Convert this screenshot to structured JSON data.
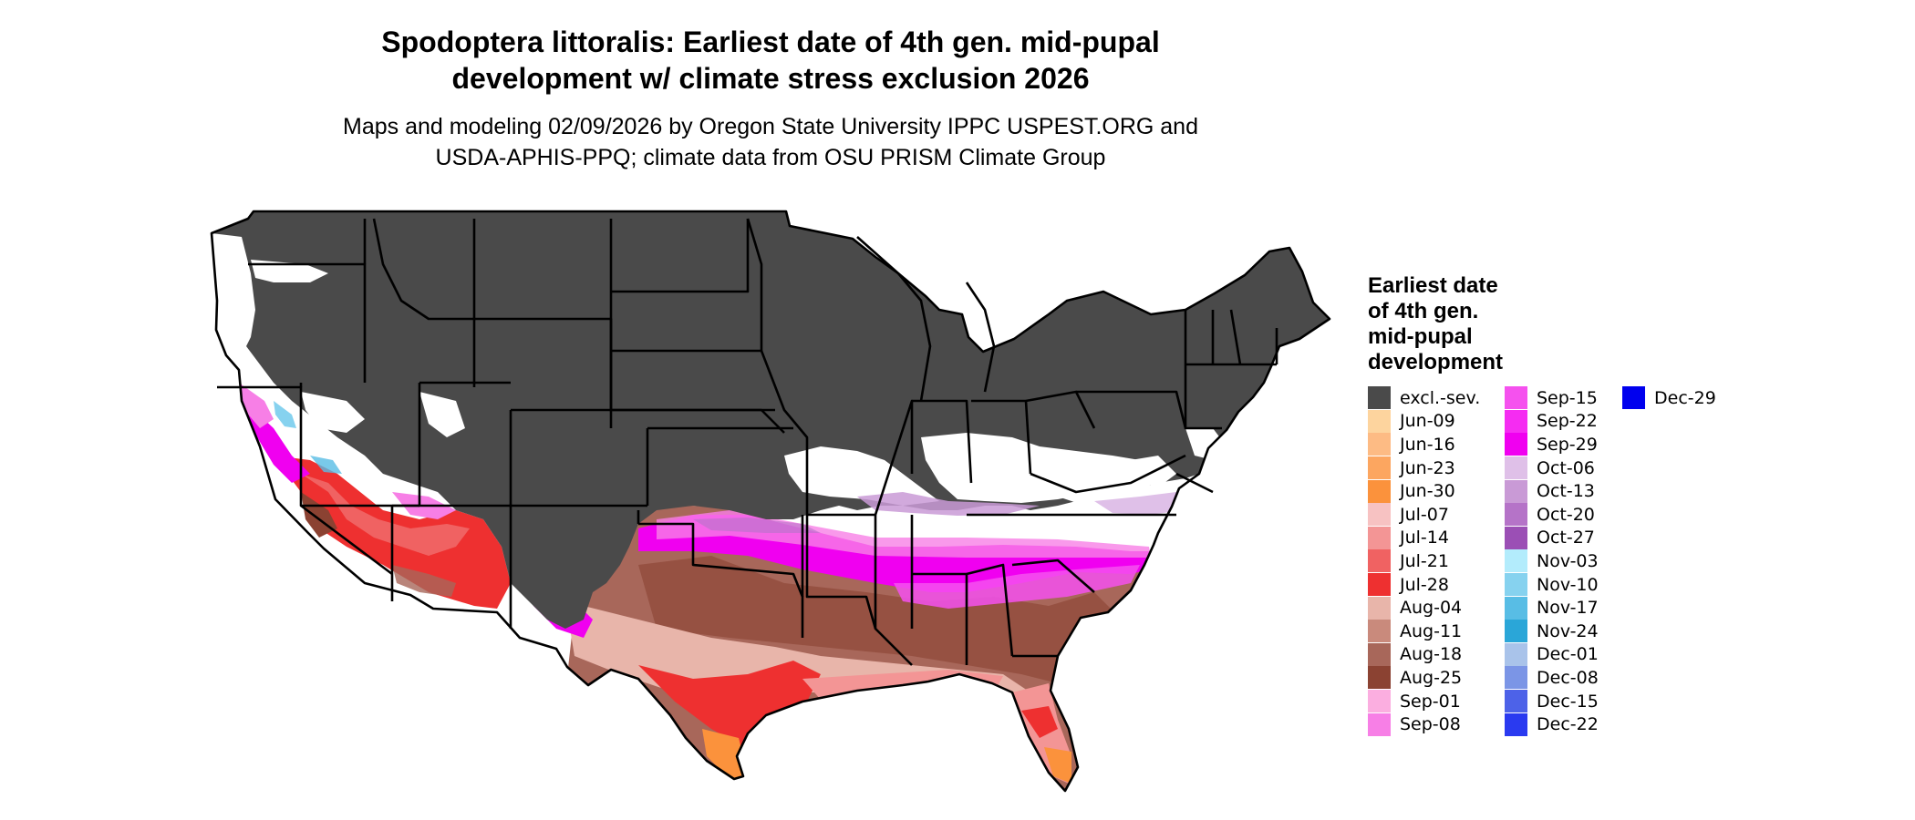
{
  "title_lines": [
    "Spodoptera littoralis: Earliest date of 4th gen. mid-pupal",
    "development w/ climate stress exclusion 2026"
  ],
  "subtitle_lines": [
    "Maps and modeling 02/09/2026 by Oregon State University IPPC USPEST.ORG and",
    "USDA-APHIS-PPQ; climate data from OSU PRISM Climate Group"
  ],
  "legend": {
    "title_lines": [
      "Earliest date",
      "of 4th gen.",
      "mid-pupal",
      "development"
    ],
    "items": [
      {
        "label": "excl.-sev.",
        "color": "#4a4a4a"
      },
      {
        "label": "Jun-09",
        "color": "#fdd49e"
      },
      {
        "label": "Jun-16",
        "color": "#fdbb84"
      },
      {
        "label": "Jun-23",
        "color": "#fca660"
      },
      {
        "label": "Jun-30",
        "color": "#fb923c"
      },
      {
        "label": "Jul-07",
        "color": "#f7c2c2"
      },
      {
        "label": "Jul-14",
        "color": "#f39595"
      },
      {
        "label": "Jul-21",
        "color": "#f06262"
      },
      {
        "label": "Jul-28",
        "color": "#ee3030"
      },
      {
        "label": "Aug-04",
        "color": "#e8b5aa"
      },
      {
        "label": "Aug-11",
        "color": "#c98a7c"
      },
      {
        "label": "Aug-18",
        "color": "#a8675a"
      },
      {
        "label": "Aug-25",
        "color": "#8b4232"
      },
      {
        "label": "Sep-01",
        "color": "#fbaee0"
      },
      {
        "label": "Sep-08",
        "color": "#f77fe6"
      },
      {
        "label": "Sep-15",
        "color": "#f551ee"
      },
      {
        "label": "Sep-22",
        "color": "#f52cf2"
      },
      {
        "label": "Sep-29",
        "color": "#f000f0"
      },
      {
        "label": "Oct-06",
        "color": "#dfc0e8"
      },
      {
        "label": "Oct-13",
        "color": "#c99ad6"
      },
      {
        "label": "Oct-20",
        "color": "#b573c8"
      },
      {
        "label": "Oct-27",
        "color": "#9b4fb5"
      },
      {
        "label": "Nov-03",
        "color": "#b3ecfc"
      },
      {
        "label": "Nov-10",
        "color": "#86d2ef"
      },
      {
        "label": "Nov-17",
        "color": "#58bde5"
      },
      {
        "label": "Nov-24",
        "color": "#2aa6d8"
      },
      {
        "label": "Dec-01",
        "color": "#a9c3ea"
      },
      {
        "label": "Dec-08",
        "color": "#7b95e6"
      },
      {
        "label": "Dec-15",
        "color": "#4d62e8"
      },
      {
        "label": "Dec-22",
        "color": "#2a3af0"
      },
      {
        "label": "Dec-29",
        "color": "#0000ee"
      }
    ]
  },
  "map": {
    "region": "Contiguous United States",
    "colors": {
      "excluded": "#4a4a4a",
      "not_reached": "#ffffff",
      "state_border": "#000000"
    }
  }
}
